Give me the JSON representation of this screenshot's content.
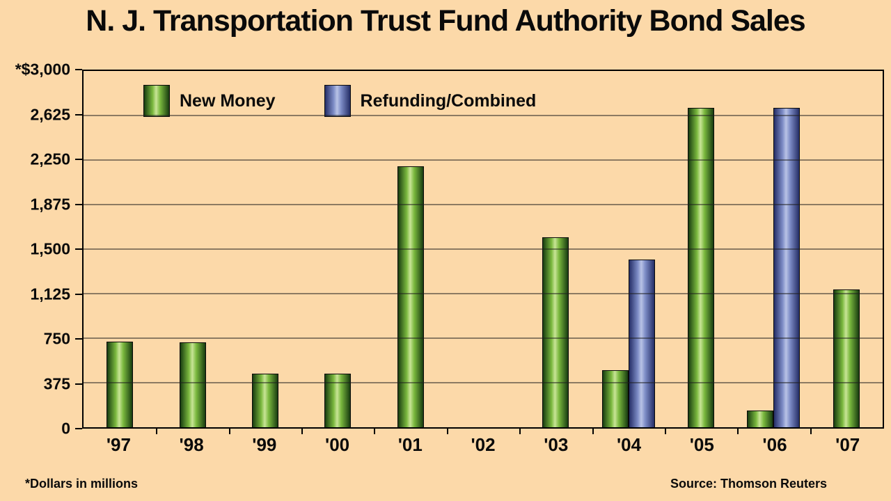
{
  "title": "N. J. Transportation Trust Fund Authority Bond Sales",
  "footer": {
    "left": "*Dollars in millions",
    "right": "Source: Thomson Reuters"
  },
  "colors": {
    "background": "#fcd9a9",
    "gridline": "#1c1c1c",
    "plot_border": "#000000"
  },
  "chart_data": {
    "type": "bar",
    "title": "N. J. Transportation Trust Fund Authority Bond Sales",
    "xlabel": "",
    "ylabel": "*Dollars in millions",
    "ylim": [
      0,
      3000
    ],
    "grid": true,
    "legend_position": "top-left-inside",
    "categories": [
      "'97",
      "'98",
      "'99",
      "'00",
      "'01",
      "'02",
      "'03",
      "'04",
      "'05",
      "'06",
      "'07"
    ],
    "series": [
      {
        "name": "New Money",
        "values": [
          720,
          715,
          450,
          450,
          2200,
          0,
          1600,
          480,
          2690,
          140,
          1160
        ],
        "gradient": [
          "#183c10",
          "#7ab83e",
          "#c8e496"
        ]
      },
      {
        "name": "Refunding/Combined",
        "values": [
          0,
          0,
          0,
          0,
          0,
          0,
          0,
          1410,
          0,
          2690,
          0
        ],
        "gradient": [
          "#252e66",
          "#7d8cc6",
          "#b9c3e6"
        ]
      }
    ],
    "yticks": [
      {
        "label": "*$3,000",
        "value": 3000
      },
      {
        "label": "2,625",
        "value": 2625
      },
      {
        "label": "2,250",
        "value": 2250
      },
      {
        "label": "1,875",
        "value": 1875
      },
      {
        "label": "1,500",
        "value": 1500
      },
      {
        "label": "1,125",
        "value": 1125
      },
      {
        "label": "750",
        "value": 750
      },
      {
        "label": "375",
        "value": 375
      },
      {
        "label": "0",
        "value": 0
      }
    ]
  }
}
